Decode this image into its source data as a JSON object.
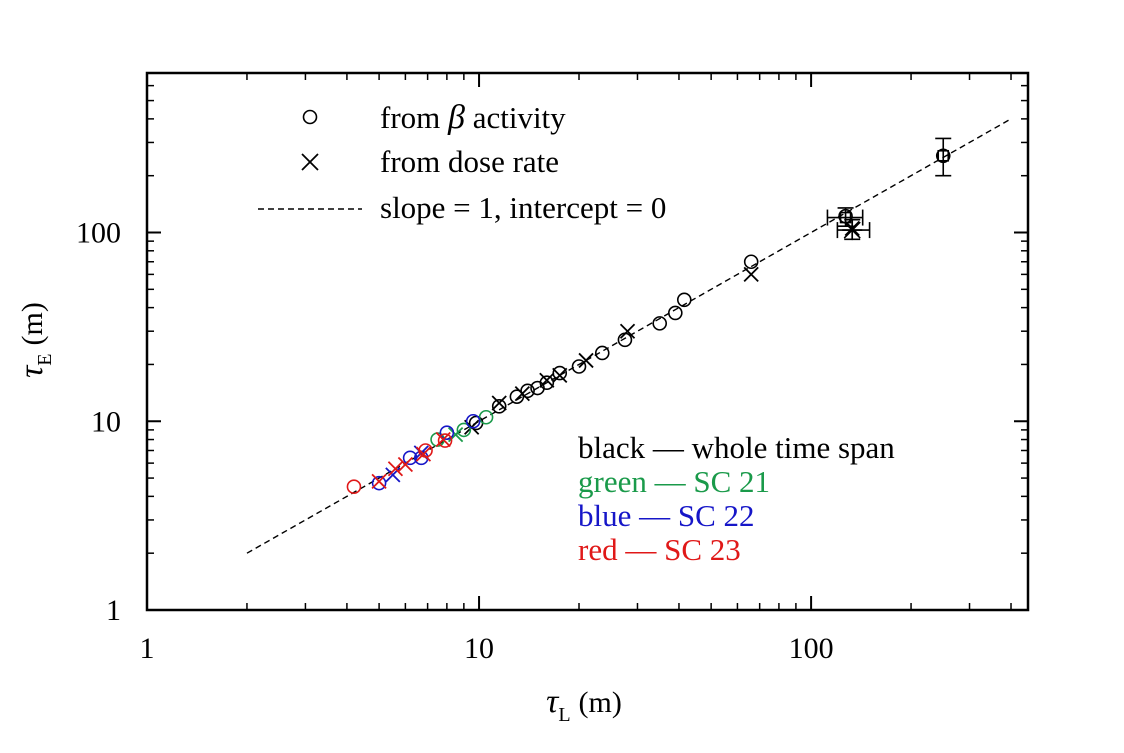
{
  "chart_data": {
    "type": "scatter",
    "x_scale": "log",
    "y_scale": "log",
    "xlim": [
      1,
      450
    ],
    "ylim": [
      1,
      700
    ],
    "xlabel": {
      "symbol": "τ",
      "sub": "L",
      "unit": "(m)"
    },
    "ylabel": {
      "symbol": "τ",
      "sub": "E",
      "unit": "(m)"
    },
    "x_ticks": [
      {
        "value": 1,
        "label": "1"
      },
      {
        "value": 10,
        "label": "10"
      },
      {
        "value": 100,
        "label": "100"
      }
    ],
    "y_ticks": [
      {
        "value": 1,
        "label": "1"
      },
      {
        "value": 10,
        "label": "10"
      },
      {
        "value": 100,
        "label": "100"
      }
    ],
    "legend": {
      "placement": "top-left",
      "entries": [
        {
          "marker": "circle",
          "label_pre": "from ",
          "label_symbol": "β",
          "label_post": " activity"
        },
        {
          "marker": "cross",
          "label": "from dose rate"
        },
        {
          "marker": "dashed-line",
          "label": "slope = 1, intercept = 0"
        }
      ]
    },
    "color_notes": {
      "placement": "bottom-right",
      "items": [
        {
          "text": "black — whole time span",
          "color": "#000000"
        },
        {
          "text": "green — SC 21",
          "color": "#1a9a4a"
        },
        {
          "text": "blue — SC 22",
          "color": "#1616c8"
        },
        {
          "text": "red — SC 23",
          "color": "#e01818"
        }
      ]
    },
    "reference_line": {
      "name": "slope = 1, intercept = 0",
      "x": [
        2,
        400
      ],
      "y": [
        2,
        400
      ],
      "style": "dashed"
    },
    "series": [
      {
        "name": "from β activity",
        "marker": "circle",
        "color": "#000000",
        "group": "whole time span",
        "x": [
          9.8,
          11.5,
          13,
          14,
          15,
          16,
          17.5,
          20,
          23.5,
          27.5,
          35,
          39,
          41.5,
          66,
          127,
          250
        ],
        "y": [
          9.8,
          12,
          13.5,
          14.5,
          15,
          16,
          18,
          19.5,
          23,
          27,
          33,
          37.5,
          44,
          70,
          122,
          255
        ]
      },
      {
        "name": "from dose rate",
        "marker": "cross",
        "color": "#000000",
        "group": "whole time span",
        "x": [
          9.5,
          11.5,
          13.5,
          16,
          17.5,
          21,
          28,
          66,
          133
        ],
        "y": [
          9.3,
          12.5,
          14,
          16.5,
          17.5,
          21,
          30,
          60,
          105
        ]
      },
      {
        "name": "from β activity",
        "marker": "circle",
        "color": "#1a9a4a",
        "group": "SC 21",
        "x": [
          7.5,
          9,
          10.5
        ],
        "y": [
          8,
          9,
          10.5
        ]
      },
      {
        "name": "from dose rate",
        "marker": "cross",
        "color": "#1a9a4a",
        "group": "SC 21",
        "x": [
          8.5
        ],
        "y": [
          8.5
        ]
      },
      {
        "name": "from β activity",
        "marker": "circle",
        "color": "#1616c8",
        "group": "SC 22",
        "x": [
          5,
          6.2,
          6.7,
          8,
          9.6
        ],
        "y": [
          4.7,
          6.4,
          6.4,
          8.7,
          10
        ]
      },
      {
        "name": "from dose rate",
        "marker": "cross",
        "color": "#1616c8",
        "group": "SC 22",
        "x": [
          5.5,
          6.7
        ],
        "y": [
          5.2,
          6.8
        ]
      },
      {
        "name": "from β activity",
        "marker": "circle",
        "color": "#e01818",
        "group": "SC 23",
        "x": [
          4.2,
          6.9,
          7.9
        ],
        "y": [
          4.5,
          7,
          7.9
        ]
      },
      {
        "name": "from dose rate",
        "marker": "cross",
        "color": "#e01818",
        "group": "SC 23",
        "x": [
          5,
          5.6,
          6,
          6.8,
          7.8
        ],
        "y": [
          4.8,
          5.6,
          5.9,
          6.7,
          8
        ]
      }
    ],
    "error_bars": [
      {
        "marker": "square",
        "x": 250,
        "y": 255,
        "y_err": [
          200,
          315
        ]
      },
      {
        "marker": "square",
        "x": 127,
        "y": 120,
        "x_err": [
          112,
          143
        ],
        "y_err": [
          108,
          135
        ]
      },
      {
        "marker": "asterisk",
        "x": 133,
        "y": 103,
        "x_err": [
          120,
          150
        ],
        "y_err": [
          92,
          117
        ]
      }
    ]
  }
}
